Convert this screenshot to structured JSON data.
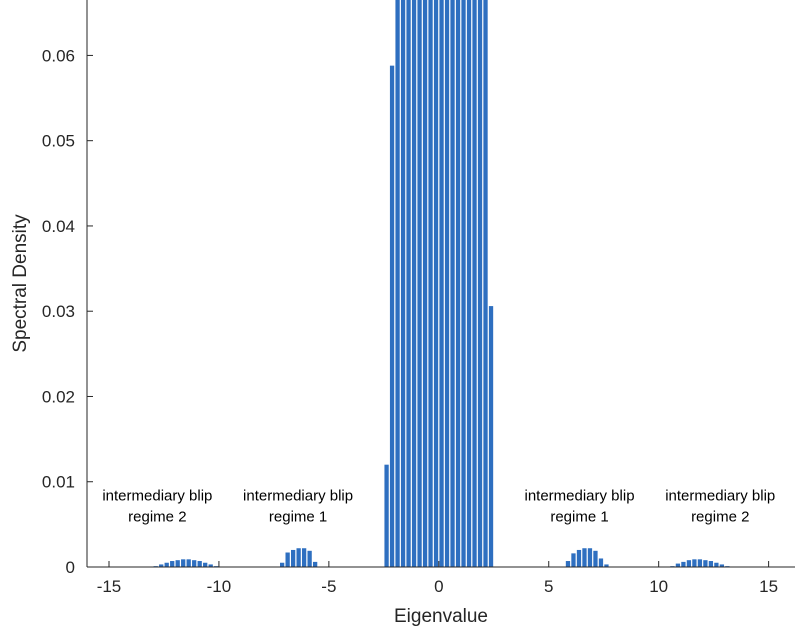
{
  "chart_data": {
    "type": "bar",
    "xlabel": "Eigenvalue",
    "ylabel": "Spectral Density",
    "xlim": [
      -16,
      16.2
    ],
    "ylim": [
      0,
      0.0665
    ],
    "grid": false,
    "x_ticks": [
      -15,
      -10,
      -5,
      0,
      5,
      10,
      15
    ],
    "x_tick_labels": [
      "-15",
      "-10",
      "-5",
      "0",
      "5",
      "10",
      "15"
    ],
    "y_ticks": [
      0,
      0.01,
      0.02,
      0.03,
      0.04,
      0.05,
      0.06
    ],
    "y_tick_labels": [
      "0",
      "0.01",
      "0.02",
      "0.03",
      "0.04",
      "0.05",
      "0.06"
    ],
    "bar_color": "#2e6fc0",
    "bin_width": 0.25,
    "bars": [
      {
        "x": -13.0,
        "y": 0.0001
      },
      {
        "x": -12.75,
        "y": 0.0003
      },
      {
        "x": -12.5,
        "y": 0.0005
      },
      {
        "x": -12.25,
        "y": 0.0007
      },
      {
        "x": -12.0,
        "y": 0.0008
      },
      {
        "x": -11.75,
        "y": 0.0009
      },
      {
        "x": -11.5,
        "y": 0.0009
      },
      {
        "x": -11.25,
        "y": 0.0008
      },
      {
        "x": -11.0,
        "y": 0.0007
      },
      {
        "x": -10.75,
        "y": 0.0005
      },
      {
        "x": -10.5,
        "y": 0.0003
      },
      {
        "x": -10.25,
        "y": 0.0001
      },
      {
        "x": -7.25,
        "y": 0.0005
      },
      {
        "x": -7.0,
        "y": 0.0017
      },
      {
        "x": -6.75,
        "y": 0.002
      },
      {
        "x": -6.5,
        "y": 0.0022
      },
      {
        "x": -6.25,
        "y": 0.0022
      },
      {
        "x": -6.0,
        "y": 0.0019
      },
      {
        "x": -5.75,
        "y": 0.0006
      },
      {
        "x": -2.5,
        "y": 0.012
      },
      {
        "x": -2.25,
        "y": 0.0588
      },
      {
        "x": -2.0,
        "y": 0.0665
      },
      {
        "x": -1.75,
        "y": 0.0665
      },
      {
        "x": -1.5,
        "y": 0.0665
      },
      {
        "x": -1.25,
        "y": 0.0665
      },
      {
        "x": -1.0,
        "y": 0.0665
      },
      {
        "x": -0.75,
        "y": 0.0665
      },
      {
        "x": -0.5,
        "y": 0.0665
      },
      {
        "x": -0.25,
        "y": 0.0665
      },
      {
        "x": 0.0,
        "y": 0.0665
      },
      {
        "x": 0.25,
        "y": 0.0665
      },
      {
        "x": 0.5,
        "y": 0.0665
      },
      {
        "x": 0.75,
        "y": 0.0665
      },
      {
        "x": 1.0,
        "y": 0.0665
      },
      {
        "x": 1.25,
        "y": 0.0665
      },
      {
        "x": 1.5,
        "y": 0.0665
      },
      {
        "x": 1.75,
        "y": 0.0665
      },
      {
        "x": 2.0,
        "y": 0.0665
      },
      {
        "x": 2.25,
        "y": 0.0306
      },
      {
        "x": 5.75,
        "y": 0.0007
      },
      {
        "x": 6.0,
        "y": 0.0016
      },
      {
        "x": 6.25,
        "y": 0.002
      },
      {
        "x": 6.5,
        "y": 0.0022
      },
      {
        "x": 6.75,
        "y": 0.0022
      },
      {
        "x": 7.0,
        "y": 0.0019
      },
      {
        "x": 7.25,
        "y": 0.001
      },
      {
        "x": 7.5,
        "y": 0.0003
      },
      {
        "x": 10.5,
        "y": 0.0001
      },
      {
        "x": 10.75,
        "y": 0.0004
      },
      {
        "x": 11.0,
        "y": 0.0006
      },
      {
        "x": 11.25,
        "y": 0.0008
      },
      {
        "x": 11.5,
        "y": 0.0009
      },
      {
        "x": 11.75,
        "y": 0.0009
      },
      {
        "x": 12.0,
        "y": 0.0008
      },
      {
        "x": 12.25,
        "y": 0.0007
      },
      {
        "x": 12.5,
        "y": 0.0005
      },
      {
        "x": 12.75,
        "y": 0.0003
      },
      {
        "x": 13.0,
        "y": 0.0001
      }
    ],
    "annotations": [
      {
        "id": "left-regime-2",
        "line1": "intermediary blip",
        "line2": "regime 2",
        "x": -12.8,
        "y": 0.0065
      },
      {
        "id": "left-regime-1",
        "line1": "intermediary blip",
        "line2": "regime 1",
        "x": -6.4,
        "y": 0.0065
      },
      {
        "id": "right-regime-1",
        "line1": "intermediary blip",
        "line2": "regime 1",
        "x": 6.4,
        "y": 0.0065
      },
      {
        "id": "right-regime-2",
        "line1": "intermediary blip",
        "line2": "regime 2",
        "x": 12.8,
        "y": 0.0065
      }
    ]
  }
}
